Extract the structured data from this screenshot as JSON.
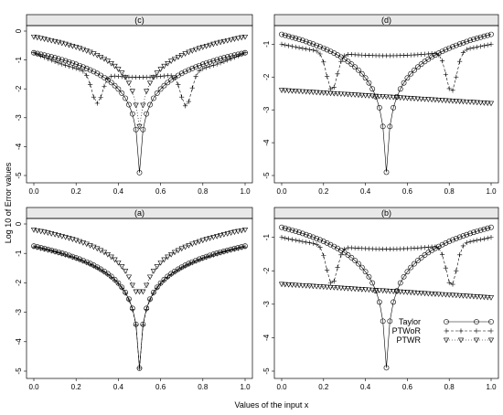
{
  "figure": {
    "xlabel": "Values of the input x",
    "ylabel": "Log 10 of Error values"
  },
  "legend": [
    {
      "name": "Taylor",
      "marker": "circle",
      "line": "solid"
    },
    {
      "name": "PTWoR",
      "marker": "plus",
      "line": "dashed"
    },
    {
      "name": "PTWR",
      "marker": "triangle-down",
      "line": "dotted"
    }
  ],
  "chart_data": [
    {
      "panel": "(c)",
      "type": "line",
      "xlim": [
        0,
        1
      ],
      "ylim": [
        -5,
        0
      ],
      "xticks": [
        "0.0",
        "0.2",
        "0.4",
        "0.6",
        "0.8",
        "1.0"
      ],
      "yticks": [
        "0",
        "-1",
        "-2",
        "-3",
        "-4",
        "-5"
      ],
      "series": [
        {
          "name": "Taylor",
          "model": "vee",
          "center": 0.5,
          "a": -0.75,
          "slope": 1.8,
          "floor": -4.9
        },
        {
          "name": "PTWoR",
          "model": "dips",
          "base": -0.75,
          "mid": -1.6,
          "dips": [
            [
              0.3,
              -2.5
            ],
            [
              0.72,
              -2.6
            ]
          ]
        },
        {
          "name": "PTWR",
          "model": "vee",
          "center": 0.5,
          "a": -0.2,
          "slope": 1.6,
          "floor": -3.3
        }
      ]
    },
    {
      "panel": "(d)",
      "type": "line",
      "xlim": [
        0,
        1
      ],
      "ylim": [
        -5,
        -0.6
      ],
      "xticks": [
        "0.0",
        "0.2",
        "0.4",
        "0.6",
        "0.8",
        "1.0"
      ],
      "yticks": [
        "-1",
        "-2",
        "-3",
        "-4",
        "-5"
      ],
      "series": [
        {
          "name": "Taylor",
          "model": "vee",
          "center": 0.5,
          "a": -0.7,
          "slope": 1.9,
          "floor": -4.9
        },
        {
          "name": "PTWoR",
          "model": "dips",
          "base": -1.0,
          "mid": -1.35,
          "dips": [
            [
              0.24,
              -2.4
            ],
            [
              0.81,
              -2.45
            ]
          ]
        },
        {
          "name": "PTWR",
          "model": "linear",
          "y0": -2.4,
          "y1": -2.8
        }
      ]
    },
    {
      "panel": "(a)",
      "type": "line",
      "xlim": [
        0,
        1
      ],
      "ylim": [
        -5,
        0
      ],
      "xticks": [
        "0.0",
        "0.2",
        "0.4",
        "0.6",
        "0.8",
        "1.0"
      ],
      "yticks": [
        "0",
        "-1",
        "-2",
        "-3",
        "-4",
        "-5"
      ],
      "series": [
        {
          "name": "Taylor",
          "model": "vee",
          "center": 0.5,
          "a": -0.75,
          "slope": 1.8,
          "floor": -4.9
        },
        {
          "name": "PTWoR",
          "model": "vee",
          "center": 0.5,
          "a": -0.78,
          "slope": 1.8,
          "floor": -4.9
        },
        {
          "name": "PTWR",
          "model": "vee",
          "center": 0.5,
          "a": -0.2,
          "slope": 1.6,
          "floor": -2.3
        }
      ]
    },
    {
      "panel": "(b)",
      "type": "line",
      "xlim": [
        0,
        1
      ],
      "ylim": [
        -5,
        -0.6
      ],
      "xticks": [
        "0.0",
        "0.2",
        "0.4",
        "0.6",
        "0.8",
        "1.0"
      ],
      "yticks": [
        "-1",
        "-2",
        "-3",
        "-4",
        "-5"
      ],
      "series": [
        {
          "name": "Taylor",
          "model": "vee",
          "center": 0.5,
          "a": -0.7,
          "slope": 1.9,
          "floor": -4.9
        },
        {
          "name": "PTWoR",
          "model": "dips",
          "base": -1.0,
          "mid": -1.35,
          "dips": [
            [
              0.24,
              -2.4
            ],
            [
              0.81,
              -2.45
            ]
          ]
        },
        {
          "name": "PTWR",
          "model": "linear",
          "y0": -2.4,
          "y1": -2.8
        }
      ]
    }
  ]
}
